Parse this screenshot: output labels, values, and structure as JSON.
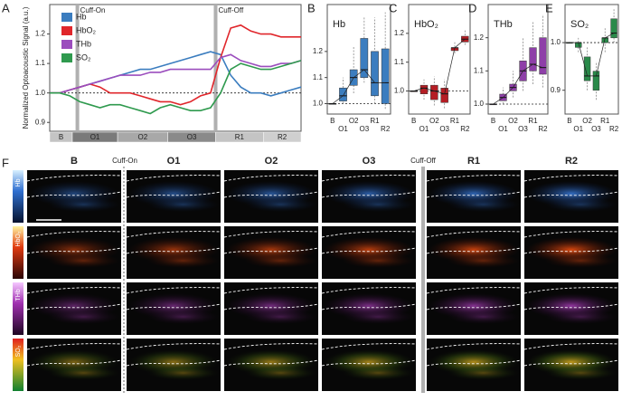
{
  "chart_data": [
    {
      "type": "line",
      "panel_label": "A",
      "ylabel": "Normalized Optoacoustic Signal (a.u.)",
      "x": [
        0,
        4,
        8,
        12,
        16,
        20,
        24,
        28,
        32,
        36,
        40,
        44,
        48,
        52,
        56,
        60,
        64,
        68,
        72,
        76,
        80,
        84,
        88,
        92,
        96,
        100
      ],
      "xlim": [
        0,
        100
      ],
      "ylim": [
        0.87,
        1.3
      ],
      "yticks": [
        0.9,
        {
          "value": 1,
          "label": "1.0"
        },
        1.1,
        1.2
      ],
      "reference_line": 1,
      "annotations": [
        {
          "text": "Cuff-On",
          "x": 11
        },
        {
          "text": "Cuff-Off",
          "x": 66
        }
      ],
      "phases": [
        "B",
        "O1",
        "O2",
        "O3",
        "R1",
        "R2"
      ],
      "phase_bounds": [
        0,
        9,
        27,
        47,
        66,
        85,
        100
      ],
      "phase_colors": [
        "#c4c4c4",
        "#7a7a7a",
        "#a8a8a8",
        "#8a8a8a",
        "#c4c4c4",
        "#cfcfcf"
      ],
      "series": [
        {
          "name": "Hb",
          "color": "#3b7dbf",
          "values": [
            1.0,
            1.0,
            1.01,
            1.02,
            1.03,
            1.04,
            1.05,
            1.06,
            1.07,
            1.08,
            1.08,
            1.09,
            1.1,
            1.11,
            1.12,
            1.13,
            1.14,
            1.13,
            1.06,
            1.02,
            1.0,
            1.0,
            0.99,
            1.0,
            1.01,
            1.02
          ]
        },
        {
          "name": "HbO₂",
          "color": "#e0262b",
          "values": [
            1.0,
            1.0,
            1.01,
            1.02,
            1.03,
            1.02,
            1.0,
            1.0,
            1.0,
            0.99,
            0.98,
            0.97,
            0.97,
            0.96,
            0.97,
            0.99,
            1.0,
            1.12,
            1.22,
            1.23,
            1.21,
            1.2,
            1.2,
            1.19,
            1.19,
            1.19
          ]
        },
        {
          "name": "THb",
          "color": "#9b4dbd",
          "values": [
            1.0,
            1.0,
            1.01,
            1.02,
            1.03,
            1.04,
            1.05,
            1.06,
            1.06,
            1.06,
            1.07,
            1.07,
            1.08,
            1.08,
            1.08,
            1.08,
            1.08,
            1.12,
            1.13,
            1.11,
            1.1,
            1.09,
            1.09,
            1.1,
            1.1,
            1.11
          ]
        },
        {
          "name": "SO₂",
          "color": "#2f9a4e",
          "values": [
            1.0,
            1.0,
            0.99,
            0.97,
            0.96,
            0.95,
            0.96,
            0.96,
            0.95,
            0.94,
            0.93,
            0.95,
            0.96,
            0.95,
            0.94,
            0.94,
            0.95,
            1.0,
            1.08,
            1.1,
            1.09,
            1.08,
            1.08,
            1.09,
            1.1,
            1.11
          ]
        }
      ]
    },
    {
      "type": "box",
      "panel_label": "B",
      "title": "Hb",
      "color": "#3b7dbf",
      "categories": [
        "B",
        "O1",
        "O2",
        "O3",
        "R1",
        "R2"
      ],
      "ylim": [
        0.96,
        1.38
      ],
      "yticks": [
        {
          "value": 1,
          "label": "1.0"
        },
        1.1,
        1.2
      ],
      "reference_line": 1,
      "min": [
        1.0,
        1.0,
        1.04,
        1.08,
        1.0,
        0.98
      ],
      "q1": [
        1.0,
        1.01,
        1.07,
        1.1,
        1.03,
        1.0
      ],
      "median": [
        1.0,
        1.03,
        1.1,
        1.13,
        1.08,
        1.08
      ],
      "q3": [
        1.0,
        1.06,
        1.13,
        1.25,
        1.2,
        1.21
      ],
      "max": [
        1.0,
        1.1,
        1.22,
        1.33,
        1.33,
        1.35
      ]
    },
    {
      "type": "box",
      "panel_label": "C",
      "title": "HbO₂",
      "color": "#b51d24",
      "categories": [
        "B",
        "O1",
        "O2",
        "O3",
        "R1",
        "R2"
      ],
      "ylim": [
        0.92,
        1.3
      ],
      "yticks": [
        {
          "value": 1,
          "label": "1.0"
        },
        1.1,
        1.2
      ],
      "reference_line": 1,
      "min": [
        1.0,
        0.97,
        0.95,
        0.94,
        1.13,
        1.16
      ],
      "q1": [
        1.0,
        0.99,
        0.97,
        0.96,
        1.14,
        1.17
      ],
      "median": [
        1.0,
        1.01,
        1.0,
        0.99,
        1.15,
        1.18
      ],
      "q3": [
        1.0,
        1.02,
        1.02,
        1.01,
        1.15,
        1.19
      ],
      "max": [
        1.0,
        1.04,
        1.05,
        1.04,
        1.17,
        1.21
      ]
    },
    {
      "type": "box",
      "panel_label": "D",
      "title": "THb",
      "color": "#8e3fa8",
      "categories": [
        "B",
        "O1",
        "O2",
        "O3",
        "R1",
        "R2"
      ],
      "ylim": [
        0.97,
        1.3
      ],
      "yticks": [
        {
          "value": 1,
          "label": "1.0"
        },
        1.1,
        1.2
      ],
      "reference_line": 1,
      "min": [
        1.0,
        1.0,
        1.02,
        1.04,
        1.06,
        1.05
      ],
      "q1": [
        1.0,
        1.01,
        1.04,
        1.07,
        1.1,
        1.09
      ],
      "median": [
        1.0,
        1.02,
        1.05,
        1.1,
        1.12,
        1.11
      ],
      "q3": [
        1.0,
        1.03,
        1.06,
        1.13,
        1.17,
        1.2
      ],
      "max": [
        1.0,
        1.05,
        1.1,
        1.2,
        1.25,
        1.27
      ]
    },
    {
      "type": "box",
      "panel_label": "E",
      "title": "SO₂",
      "color": "#2a8a4a",
      "categories": [
        "B",
        "O1",
        "O2",
        "O3",
        "R1",
        "R2"
      ],
      "ylim": [
        0.85,
        1.08
      ],
      "yticks": [
        0.9,
        {
          "value": 1,
          "label": "1.0"
        }
      ],
      "reference_line": 1,
      "min": [
        1.0,
        0.98,
        0.9,
        0.88,
        0.98,
        1.0
      ],
      "q1": [
        1.0,
        0.99,
        0.92,
        0.9,
        1.0,
        1.01
      ],
      "median": [
        1.0,
        1.0,
        0.93,
        0.93,
        1.01,
        1.02
      ],
      "q3": [
        1.0,
        1.0,
        0.97,
        0.94,
        1.01,
        1.05
      ],
      "max": [
        1.0,
        1.01,
        0.99,
        0.96,
        1.03,
        1.07
      ]
    }
  ],
  "image_grid": {
    "panel_label": "F",
    "columns": [
      "B",
      "O1",
      "O2",
      "O3",
      "R1",
      "R2"
    ],
    "rows": [
      "Hb",
      "HbO₂",
      "THb",
      "SO₂"
    ],
    "markers": [
      "Cuff-On",
      "Cuff-Off"
    ]
  }
}
